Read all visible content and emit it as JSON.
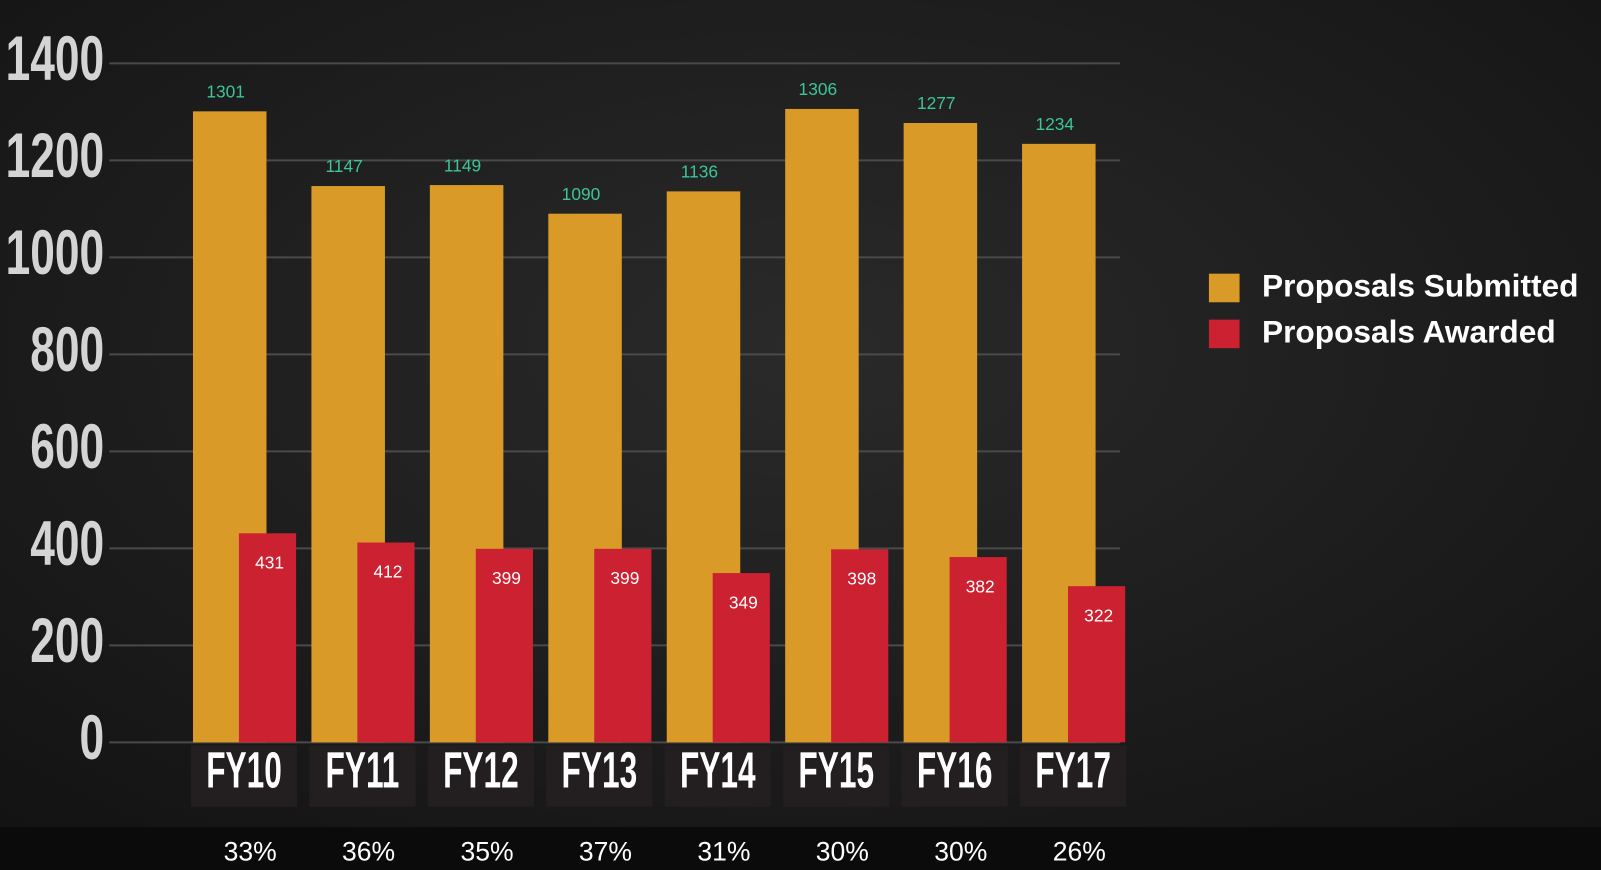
{
  "chart_data": {
    "type": "bar",
    "categories": [
      "FY10",
      "FY11",
      "FY12",
      "FY13",
      "FY14",
      "FY15",
      "FY16",
      "FY17"
    ],
    "series": [
      {
        "name": "Proposals Submitted",
        "color": "#d99a27",
        "values": [
          1301,
          1147,
          1149,
          1090,
          1136,
          1306,
          1277,
          1234
        ]
      },
      {
        "name": "Proposals Awarded",
        "color": "#cc2131",
        "values": [
          431,
          412,
          399,
          399,
          349,
          398,
          382,
          322
        ]
      }
    ],
    "rates": [
      "33%",
      "36%",
      "35%",
      "37%",
      "31%",
      "30%",
      "30%",
      "26%"
    ],
    "ylim": [
      0,
      1400
    ],
    "yticks": [
      0,
      200,
      400,
      600,
      800,
      1000,
      1200,
      1400
    ],
    "grid": true,
    "legend": "right"
  }
}
